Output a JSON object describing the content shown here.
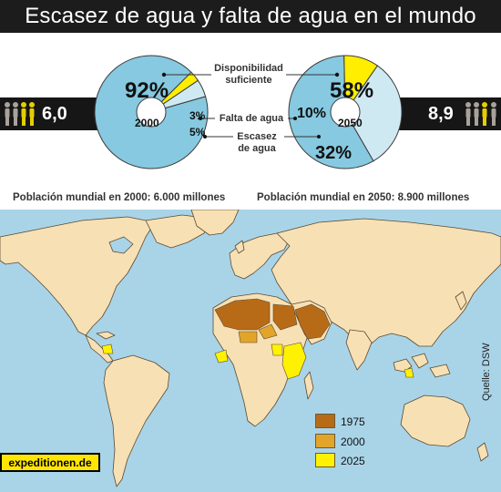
{
  "title": "Escasez de agua y falta de agua en el mundo",
  "colors": {
    "adequate": "#86c9e0",
    "shortage": "#ffee00",
    "scarcity": "#cfe9f3",
    "land": "#f7e0b3",
    "sea": "#a9d4e8",
    "region_1975": "#b86b17",
    "region_2000": "#e2a52a",
    "region_2025": "#fff200",
    "band": "#161616"
  },
  "left": {
    "population": "6,0",
    "year": "2000",
    "caption": "Población mundial en 2000: 6.000 millones"
  },
  "right": {
    "population": "8,9",
    "year": "2050",
    "caption": "Población mundial en 2050: 8.900 millones"
  },
  "legend": {
    "adequate": "Disponibilidad\nsuficiente",
    "shortage": "Falta de agua",
    "scarcity": "Escasez\nde agua"
  },
  "chart_data": [
    {
      "type": "pie",
      "center_label": "2000",
      "categories": [
        "Disponibilidad suficiente",
        "Falta de agua",
        "Escasez de agua"
      ],
      "values": [
        92,
        3,
        5
      ],
      "labels": [
        "92%",
        "3%",
        "5%"
      ]
    },
    {
      "type": "pie",
      "center_label": "2050",
      "categories": [
        "Disponibilidad suficiente",
        "Falta de agua",
        "Escasez de agua"
      ],
      "values": [
        58,
        10,
        32
      ],
      "labels": [
        "58%",
        "10%",
        "32%"
      ]
    }
  ],
  "map_legend": [
    {
      "label": "1975",
      "color": "#b86b17"
    },
    {
      "label": "2000",
      "color": "#e2a52a"
    },
    {
      "label": "2025",
      "color": "#fff200"
    }
  ],
  "source": "Quelle: DSW",
  "logo": "expeditionen.de"
}
